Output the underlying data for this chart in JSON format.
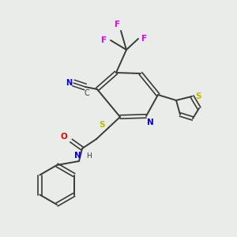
{
  "bg_color": "#eaece9",
  "bond_color": "#3a3a3a",
  "colors": {
    "N": "#0000ee",
    "O": "#ee0000",
    "S": "#bbbb00",
    "F": "#ee00ee",
    "C": "#3a3a3a",
    "H_color": "#3a3a3a"
  }
}
